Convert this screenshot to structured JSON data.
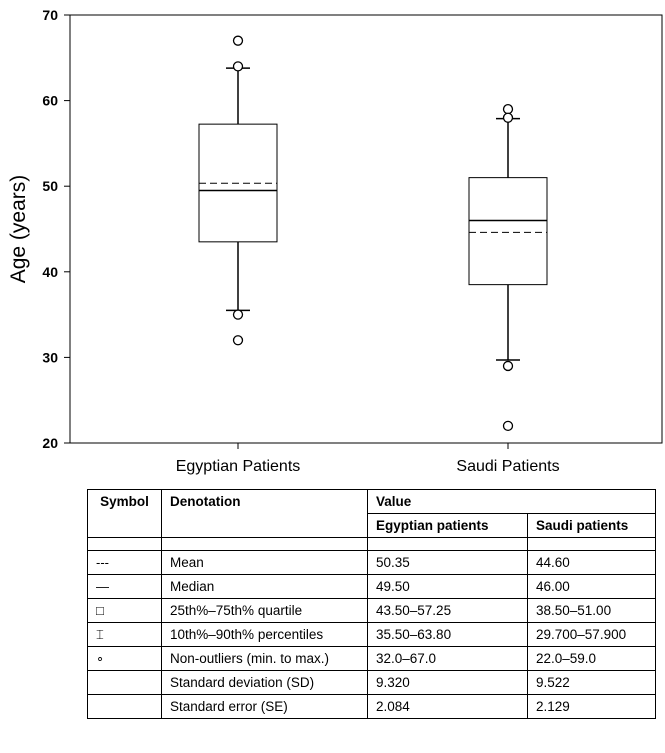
{
  "chart_data": {
    "type": "box",
    "ylabel": "Age (years)",
    "ylim": [
      20,
      70
    ],
    "yticks": [
      20,
      30,
      40,
      50,
      60,
      70
    ],
    "categories": [
      "Egyptian Patients",
      "Saudi Patients"
    ],
    "boxes": [
      {
        "category": "Egyptian Patients",
        "mean": 50.35,
        "median": 49.5,
        "q1": 43.5,
        "q3": 57.25,
        "whisker_low": 35.5,
        "whisker_high": 63.8,
        "outliers": [
          67,
          64,
          35,
          32
        ]
      },
      {
        "category": "Saudi Patients",
        "mean": 44.6,
        "median": 46.0,
        "q1": 38.5,
        "q3": 51.0,
        "whisker_low": 29.7,
        "whisker_high": 57.9,
        "outliers": [
          59,
          58,
          29,
          22
        ]
      }
    ],
    "grid": false
  },
  "table": {
    "headers": {
      "symbol": "Symbol",
      "denotation": "Denotation",
      "value": "Value",
      "egyptian": "Egyptian patients",
      "saudi": "Saudi patients"
    },
    "rows": [
      {
        "symbol": "---",
        "denotation": "Mean",
        "egyptian": "50.35",
        "saudi": "44.60"
      },
      {
        "symbol": "—",
        "denotation": "Median",
        "egyptian": "49.50",
        "saudi": "46.00"
      },
      {
        "symbol": "□",
        "denotation": "25th%–75th% quartile",
        "egyptian": "43.50–57.25",
        "saudi": "38.50–51.00"
      },
      {
        "symbol": "⌶",
        "denotation": "10th%–90th% percentiles",
        "egyptian": "35.50–63.80",
        "saudi": "29.700–57.900"
      },
      {
        "symbol": "∘",
        "denotation": "Non-outliers (min. to max.)",
        "egyptian": "32.0–67.0",
        "saudi": "22.0–59.0"
      },
      {
        "symbol": "",
        "denotation": "Standard deviation (SD)",
        "egyptian": "9.320",
        "saudi": "9.522"
      },
      {
        "symbol": "",
        "denotation": "Standard error (SE)",
        "egyptian": "2.084",
        "saudi": "2.129"
      }
    ]
  }
}
